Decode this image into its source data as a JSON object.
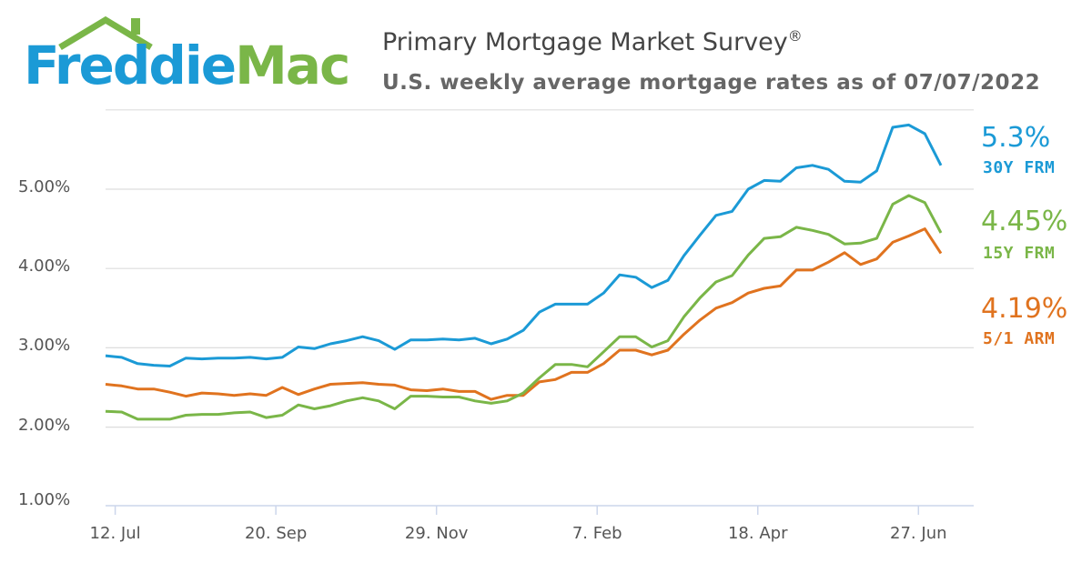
{
  "logo": {
    "word1": "Freddie",
    "word2": "Mac"
  },
  "header": {
    "title": "Primary Mortgage Market Survey",
    "registered": "®",
    "subtitle": "U.S. weekly average mortgage rates as of 07/07/2022"
  },
  "colors": {
    "frm30": "#1b9ad6",
    "frm15": "#7ab648",
    "arm51": "#e0731f",
    "grid": "#dddddd"
  },
  "chart_data": {
    "type": "line",
    "title": "Primary Mortgage Market Survey",
    "subtitle": "U.S. weekly average mortgage rates as of 07/07/2022",
    "x_tick_labels": [
      "12. Jul",
      "20. Sep",
      "29. Nov",
      "7. Feb",
      "18. Apr",
      "27. Jun"
    ],
    "x_start": "2021-07-08",
    "x_end": "2022-07-07",
    "y_ticks": [
      "1.00%",
      "2.00%",
      "3.00%",
      "4.00%",
      "5.00%"
    ],
    "ylim": [
      1.0,
      6.0
    ],
    "grid": true,
    "legend": "right end labels",
    "series": [
      {
        "name": "30Y FRM",
        "end_label": "5.3%",
        "values": [
          2.9,
          2.88,
          2.8,
          2.78,
          2.77,
          2.87,
          2.86,
          2.87,
          2.87,
          2.88,
          2.86,
          2.88,
          3.01,
          2.99,
          3.05,
          3.09,
          3.14,
          3.09,
          2.98,
          3.1,
          3.1,
          3.11,
          3.1,
          3.12,
          3.05,
          3.11,
          3.22,
          3.45,
          3.55,
          3.55,
          3.55,
          3.69,
          3.92,
          3.89,
          3.76,
          3.85,
          4.16,
          4.42,
          4.67,
          4.72,
          5.0,
          5.11,
          5.1,
          5.27,
          5.3,
          5.25,
          5.1,
          5.09,
          5.23,
          5.78,
          5.81,
          5.7,
          5.3
        ]
      },
      {
        "name": "15Y FRM",
        "end_label": "4.45%",
        "values": [
          2.2,
          2.19,
          2.1,
          2.1,
          2.1,
          2.15,
          2.16,
          2.16,
          2.18,
          2.19,
          2.12,
          2.15,
          2.28,
          2.23,
          2.27,
          2.33,
          2.37,
          2.33,
          2.23,
          2.39,
          2.39,
          2.38,
          2.38,
          2.33,
          2.3,
          2.33,
          2.43,
          2.62,
          2.79,
          2.79,
          2.76,
          2.95,
          3.14,
          3.14,
          3.01,
          3.09,
          3.39,
          3.63,
          3.83,
          3.91,
          4.17,
          4.38,
          4.4,
          4.52,
          4.48,
          4.43,
          4.31,
          4.32,
          4.38,
          4.81,
          4.92,
          4.83,
          4.45
        ]
      },
      {
        "name": "5/1 ARM",
        "end_label": "4.19%",
        "values": [
          2.54,
          2.52,
          2.48,
          2.48,
          2.44,
          2.39,
          2.43,
          2.42,
          2.4,
          2.42,
          2.4,
          2.5,
          2.41,
          2.48,
          2.54,
          2.55,
          2.56,
          2.54,
          2.53,
          2.47,
          2.46,
          2.48,
          2.45,
          2.45,
          2.35,
          2.4,
          2.4,
          2.57,
          2.6,
          2.69,
          2.69,
          2.8,
          2.97,
          2.97,
          2.91,
          2.97,
          3.17,
          3.35,
          3.5,
          3.57,
          3.69,
          3.75,
          3.78,
          3.98,
          3.98,
          4.08,
          4.2,
          4.05,
          4.12,
          4.33,
          4.41,
          4.5,
          4.19
        ]
      }
    ]
  }
}
